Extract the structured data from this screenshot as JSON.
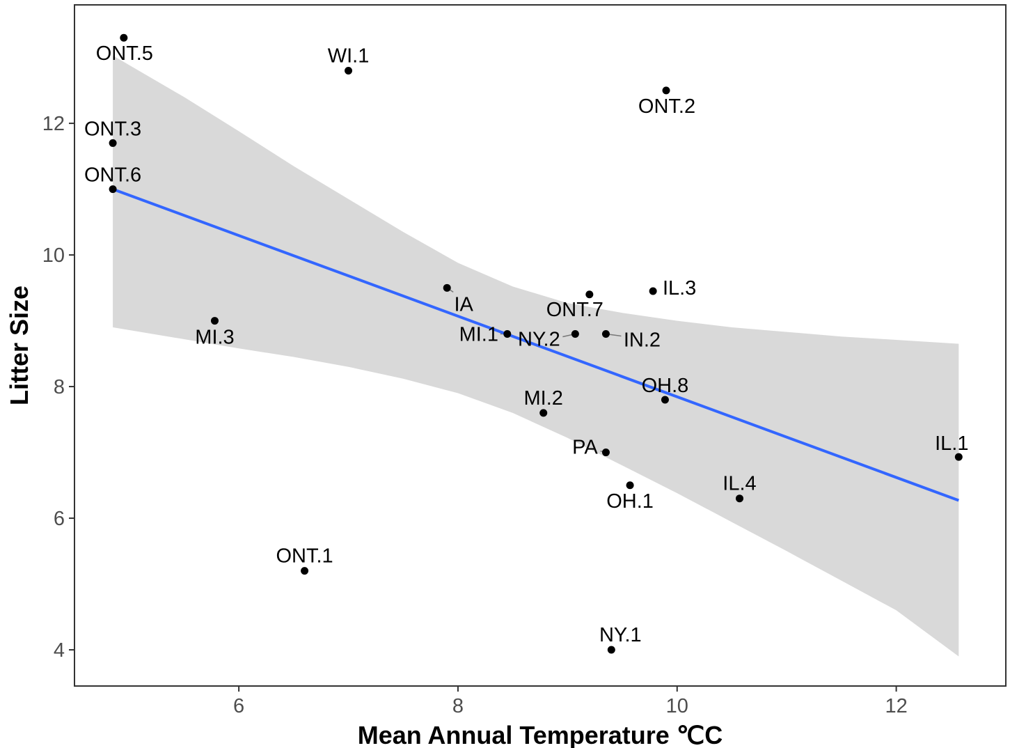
{
  "chart_data": {
    "type": "scatter",
    "xlabel": "Mean Annual Temperature ℃C",
    "ylabel": "Litter Size",
    "xlim": [
      4.5,
      13.0
    ],
    "ylim": [
      3.45,
      13.8
    ],
    "x_ticks": [
      6,
      8,
      10,
      12
    ],
    "y_ticks": [
      4,
      6,
      8,
      10,
      12
    ],
    "grid": false,
    "points": [
      {
        "label": "ONT.5",
        "x": 4.95,
        "y": 13.3
      },
      {
        "label": "WI.1",
        "x": 7.0,
        "y": 12.8
      },
      {
        "label": "ONT.2",
        "x": 9.9,
        "y": 12.5
      },
      {
        "label": "ONT.3",
        "x": 4.85,
        "y": 11.7
      },
      {
        "label": "ONT.6",
        "x": 4.85,
        "y": 11.0
      },
      {
        "label": "IA",
        "x": 7.9,
        "y": 9.5
      },
      {
        "label": "IL.3",
        "x": 9.78,
        "y": 9.45
      },
      {
        "label": "ONT.7",
        "x": 9.2,
        "y": 9.4
      },
      {
        "label": "MI.3",
        "x": 5.78,
        "y": 9.0
      },
      {
        "label": "MI.1",
        "x": 8.45,
        "y": 8.8
      },
      {
        "label": "NY.2",
        "x": 9.07,
        "y": 8.8
      },
      {
        "label": "IN.2",
        "x": 9.35,
        "y": 8.8
      },
      {
        "label": "OH.8",
        "x": 9.89,
        "y": 7.8
      },
      {
        "label": "MI.2",
        "x": 8.78,
        "y": 7.6
      },
      {
        "label": "PA",
        "x": 9.35,
        "y": 7.0
      },
      {
        "label": "IL.1",
        "x": 12.57,
        "y": 6.93
      },
      {
        "label": "OH.1",
        "x": 9.57,
        "y": 6.5
      },
      {
        "label": "IL.4",
        "x": 10.57,
        "y": 6.3
      },
      {
        "label": "ONT.1",
        "x": 6.6,
        "y": 5.2
      },
      {
        "label": "NY.1",
        "x": 9.4,
        "y": 4.0
      }
    ],
    "trend_line": {
      "x": [
        4.85,
        12.57
      ],
      "y": [
        11.0,
        6.27
      ],
      "color": "#3366ff"
    },
    "confidence_band": {
      "x": [
        4.85,
        5.5,
        6.0,
        6.5,
        7.0,
        7.5,
        8.0,
        8.5,
        9.0,
        9.5,
        10.0,
        10.5,
        11.0,
        11.5,
        12.0,
        12.57
      ],
      "lower": [
        8.9,
        8.72,
        8.58,
        8.45,
        8.3,
        8.12,
        7.9,
        7.6,
        7.22,
        6.8,
        6.38,
        5.94,
        5.5,
        5.05,
        4.6,
        3.9
      ],
      "upper": [
        13.03,
        12.4,
        11.88,
        11.35,
        10.85,
        10.35,
        9.88,
        9.52,
        9.27,
        9.12,
        9.0,
        8.9,
        8.83,
        8.76,
        8.71,
        8.65
      ],
      "color": "#d9d9d9"
    },
    "point_color": "#000000"
  }
}
